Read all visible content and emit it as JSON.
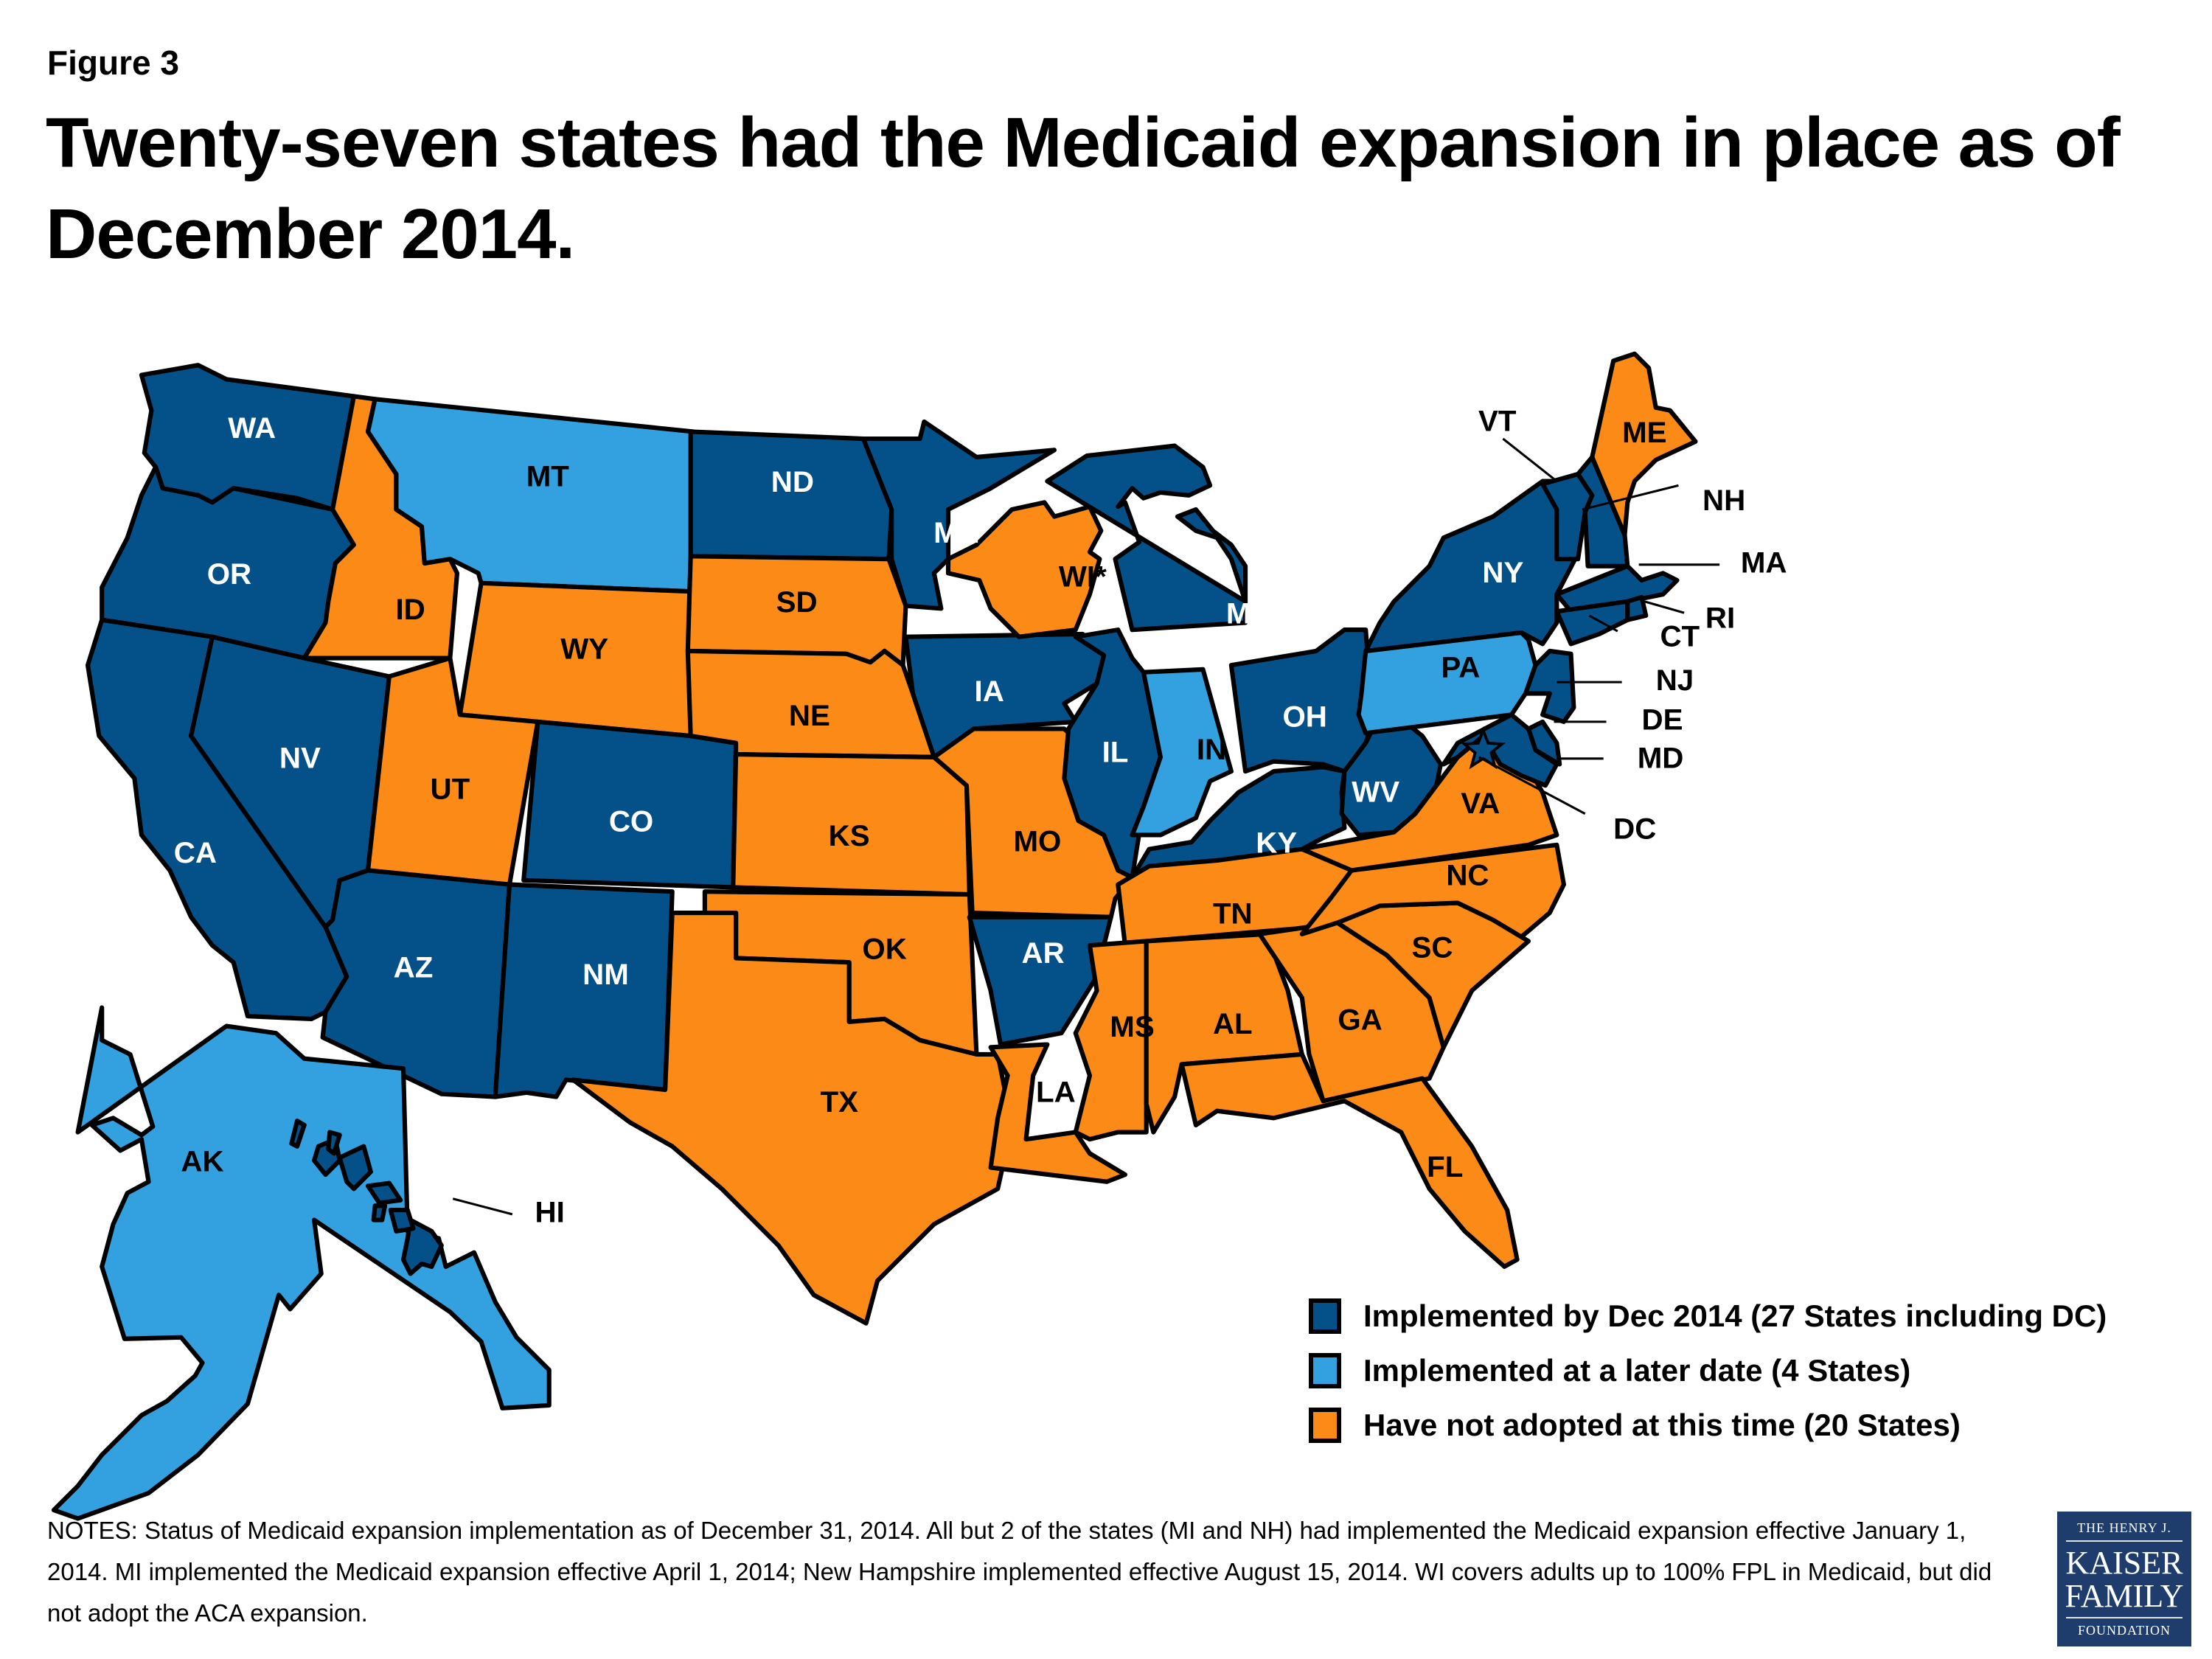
{
  "figure_label": "Figure 3",
  "title": "Twenty-seven states had the Medicaid expansion in place as of December 2014.",
  "colors": {
    "implemented": "#04518a",
    "later": "#33a1df",
    "not_adopted": "#fb8b16",
    "outline": "#000000",
    "logo_bg": "#1e3c6c"
  },
  "legend": [
    {
      "key": "implemented",
      "label": "Implemented by Dec 2014 (27 States including DC)"
    },
    {
      "key": "later",
      "label": "Implemented at a later date (4 States)"
    },
    {
      "key": "not_adopted",
      "label": "Have not adopted at this time (20 States)"
    }
  ],
  "chart_data": {
    "type": "choropleth",
    "title": "Twenty-seven states had the Medicaid expansion in place as of December 2014.",
    "categories": [
      "Implemented by Dec 2014 (27 States including DC)",
      "Implemented at a later date (4 States)",
      "Have not adopted at this time (20 States)"
    ],
    "states": {
      "WA": {
        "label": "WA",
        "status": "implemented"
      },
      "OR": {
        "label": "OR",
        "status": "implemented"
      },
      "CA": {
        "label": "CA",
        "status": "implemented"
      },
      "NV": {
        "label": "NV",
        "status": "implemented"
      },
      "ID": {
        "label": "ID",
        "status": "not_adopted"
      },
      "MT": {
        "label": "MT",
        "status": "later"
      },
      "WY": {
        "label": "WY",
        "status": "not_adopted"
      },
      "UT": {
        "label": "UT",
        "status": "not_adopted"
      },
      "AZ": {
        "label": "AZ",
        "status": "implemented"
      },
      "CO": {
        "label": "CO",
        "status": "implemented"
      },
      "NM": {
        "label": "NM",
        "status": "implemented"
      },
      "ND": {
        "label": "ND",
        "status": "implemented"
      },
      "SD": {
        "label": "SD",
        "status": "not_adopted"
      },
      "NE": {
        "label": "NE",
        "status": "not_adopted"
      },
      "KS": {
        "label": "KS",
        "status": "not_adopted"
      },
      "OK": {
        "label": "OK",
        "status": "not_adopted"
      },
      "TX": {
        "label": "TX",
        "status": "not_adopted"
      },
      "MN": {
        "label": "MN",
        "status": "implemented"
      },
      "IA": {
        "label": "IA",
        "status": "implemented"
      },
      "MO": {
        "label": "MO",
        "status": "not_adopted"
      },
      "AR": {
        "label": "AR",
        "status": "implemented"
      },
      "LA": {
        "label": "LA",
        "status": "not_adopted"
      },
      "WI": {
        "label": "WI*",
        "status": "not_adopted"
      },
      "IL": {
        "label": "IL",
        "status": "implemented"
      },
      "MI": {
        "label": "MI",
        "status": "implemented"
      },
      "IN": {
        "label": "IN",
        "status": "later"
      },
      "OH": {
        "label": "OH",
        "status": "implemented"
      },
      "KY": {
        "label": "KY",
        "status": "implemented"
      },
      "TN": {
        "label": "TN",
        "status": "not_adopted"
      },
      "MS": {
        "label": "MS",
        "status": "not_adopted"
      },
      "AL": {
        "label": "AL",
        "status": "not_adopted"
      },
      "GA": {
        "label": "GA",
        "status": "not_adopted"
      },
      "FL": {
        "label": "FL",
        "status": "not_adopted"
      },
      "SC": {
        "label": "SC",
        "status": "not_adopted"
      },
      "NC": {
        "label": "NC",
        "status": "not_adopted"
      },
      "VA": {
        "label": "VA",
        "status": "not_adopted"
      },
      "WV": {
        "label": "WV",
        "status": "implemented"
      },
      "PA": {
        "label": "PA",
        "status": "later"
      },
      "NY": {
        "label": "NY",
        "status": "implemented"
      },
      "VT": {
        "label": "VT",
        "status": "implemented"
      },
      "NH": {
        "label": "NH",
        "status": "implemented"
      },
      "ME": {
        "label": "ME",
        "status": "not_adopted"
      },
      "MA": {
        "label": "MA",
        "status": "implemented"
      },
      "RI": {
        "label": "RI",
        "status": "implemented"
      },
      "CT": {
        "label": "CT",
        "status": "implemented"
      },
      "NJ": {
        "label": "NJ",
        "status": "implemented"
      },
      "DE": {
        "label": "DE",
        "status": "implemented"
      },
      "MD": {
        "label": "MD",
        "status": "implemented"
      },
      "DC": {
        "label": "DC",
        "status": "implemented"
      },
      "AK": {
        "label": "AK",
        "status": "later"
      },
      "HI": {
        "label": "HI",
        "status": "implemented"
      }
    },
    "counts": {
      "implemented": 27,
      "later": 4,
      "not_adopted": 20
    }
  },
  "notes": "NOTES: Status of Medicaid expansion implementation as of December 31, 2014. All but 2 of the states (MI and NH) had implemented the Medicaid expansion effective January 1, 2014. MI implemented the Medicaid expansion effective April 1, 2014; New Hampshire implemented effective August 15, 2014. WI covers adults up to 100% FPL in Medicaid, but did not adopt the ACA expansion.",
  "logo": {
    "line1": "THE HENRY J.",
    "line2": "KAISER",
    "line3": "FAMILY",
    "line4": "FOUNDATION"
  }
}
